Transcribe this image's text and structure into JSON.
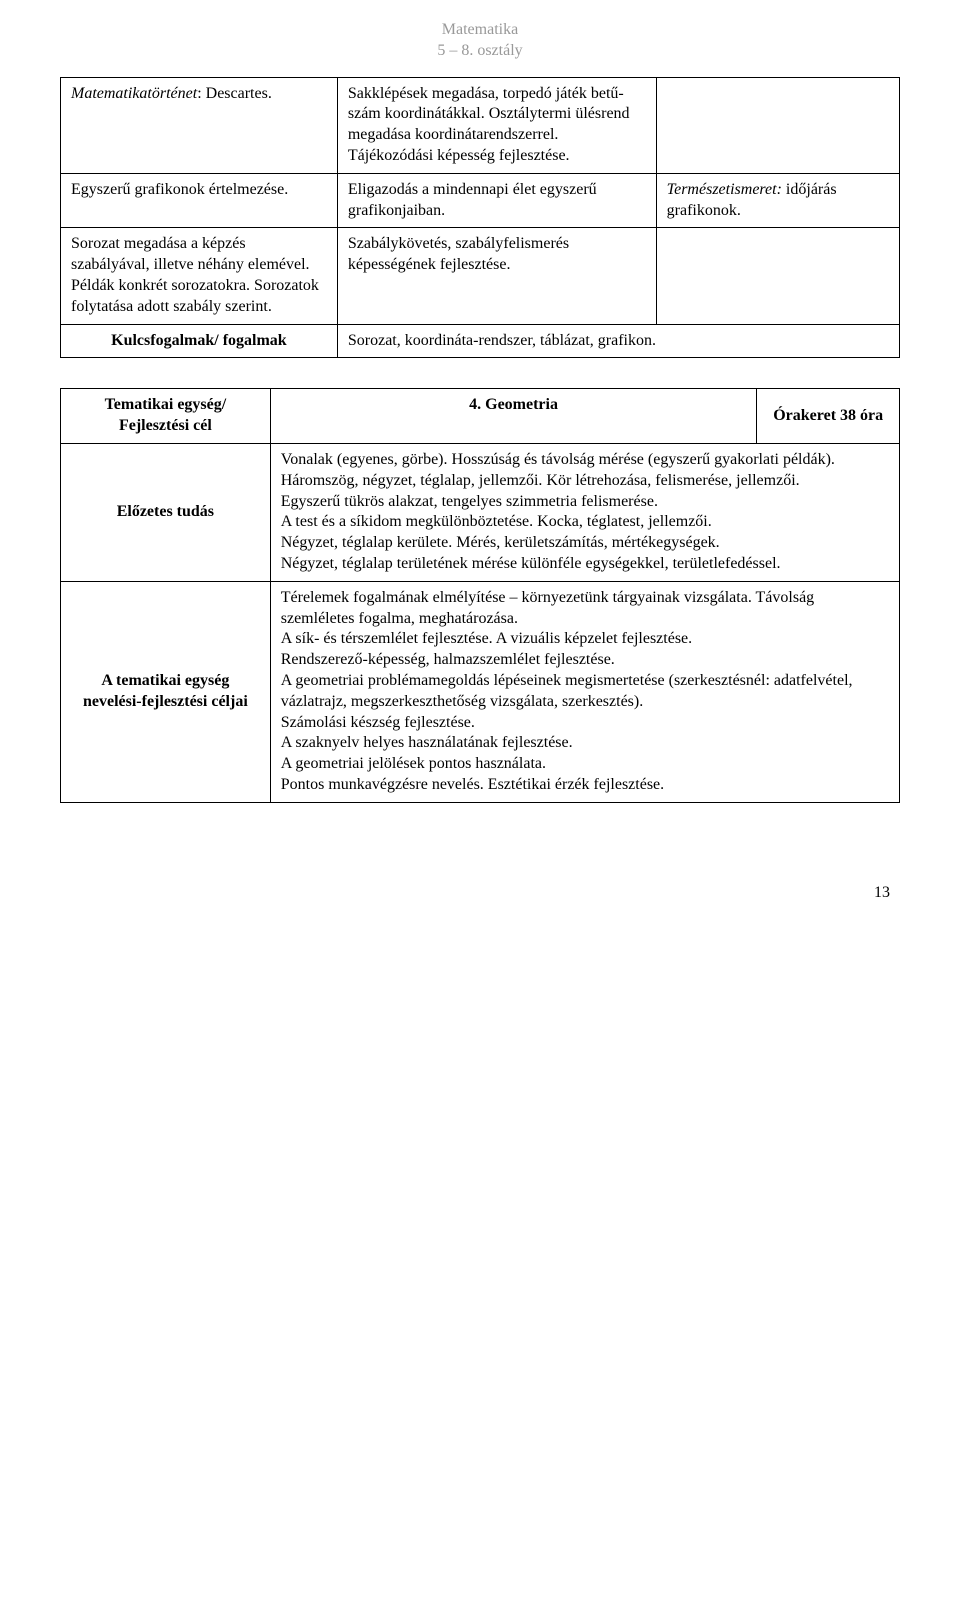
{
  "header": {
    "line1": "Matematika",
    "line2": "5 – 8. osztály"
  },
  "table1": {
    "rows": [
      {
        "c1_prefix_italic": "Matematikatörténet",
        "c1_rest": ": Descartes.",
        "c2": "Sakklépések megadása, torpedó játék betű-szám koordinátákkal. Osztálytermi ülésrend megadása koordinátarendszerrel. Tájékozódási képesség fejlesztése.",
        "c3_italic": "",
        "c3_rest": ""
      },
      {
        "c1": "Egyszerű grafikonok értelmezése.",
        "c2": "Eligazodás a mindennapi élet egyszerű grafikonjaiban.",
        "c3_italic": "Természetismeret:",
        "c3_rest": " időjárás grafikonok."
      },
      {
        "c1": "Sorozat megadása a képzés szabályával, illetve néhány elemével.\nPéldák konkrét sorozatokra. Sorozatok folytatása adott szabály szerint.",
        "c2": "Szabálykövetés, szabályfelismerés képességének fejlesztése.",
        "c3": ""
      }
    ],
    "kulcs_label": "Kulcsfogalmak/ fogalmak",
    "kulcs_content": "Sorozat, koordináta-rendszer, táblázat, grafikon."
  },
  "table2": {
    "row_header": {
      "c1": "Tematikai egység/ Fejlesztési cél",
      "c2": "4. Geometria",
      "c3": "Órakeret 38 óra"
    },
    "row_elozetes": {
      "label": "Előzetes tudás",
      "content": "Vonalak (egyenes, görbe). Hosszúság és távolság mérése (egyszerű gyakorlati példák).\nHáromszög, négyzet, téglalap, jellemzői. Kör létrehozása, felismerése, jellemzői.\nEgyszerű tükrös alakzat, tengelyes szimmetria felismerése.\nA test és a síkidom megkülönböztetése. Kocka, téglatest, jellemzői.\nNégyzet, téglalap kerülete. Mérés, kerületszámítás, mértékegységek.\nNégyzet, téglalap területének mérése különféle egységekkel, területlefedéssel."
    },
    "row_tematikai": {
      "label": "A tematikai egység nevelési-fejlesztési céljai",
      "content": "Térelemek fogalmának elmélyítése – környezetünk tárgyainak vizsgálata. Távolság szemléletes fogalma, meghatározása.\nA sík- és térszemlélet fejlesztése. A vizuális képzelet fejlesztése.\nRendszerező-képesség, halmazszemlélet fejlesztése.\nA geometriai problémamegoldás lépéseinek megismertetése (szerkesztésnél: adatfelvétel, vázlatrajz, megszerkeszthetőség vizsgálata, szerkesztés).\nSzámolási készség fejlesztése.\nA szaknyelv helyes használatának fejlesztése.\nA geometriai jelölések pontos használata.\nPontos munkavégzésre nevelés. Esztétikai érzék fejlesztése."
    }
  },
  "page_number": "13"
}
